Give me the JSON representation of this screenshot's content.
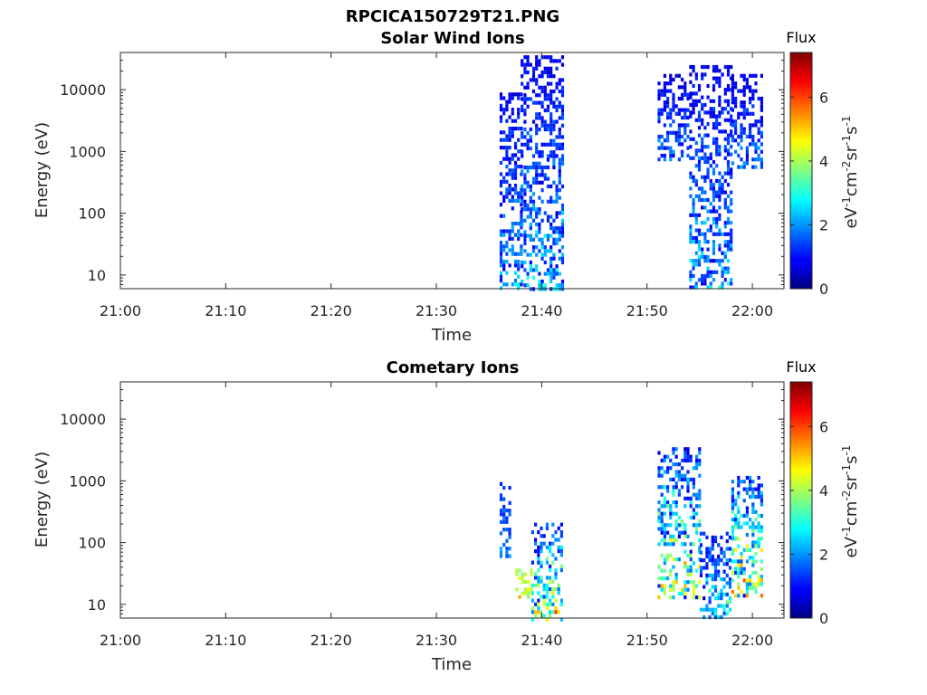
{
  "figure_title": "RPCICA150729T21.PNG",
  "chart_data": [
    {
      "type": "heatmap",
      "title": "Solar Wind Ions",
      "xlabel": "Time",
      "ylabel": "Energy (eV)",
      "x_ticks": [
        "21:00",
        "21:10",
        "21:20",
        "21:30",
        "21:40",
        "21:50",
        "22:00"
      ],
      "xlim": [
        "21:00",
        "22:03"
      ],
      "y_scale": "log",
      "y_ticks": [
        10,
        100,
        1000,
        10000
      ],
      "y_tick_labels": [
        "10",
        "100",
        "1000",
        "10000"
      ],
      "ylim": [
        6,
        40000
      ],
      "colorbar": {
        "label": "eV-1cm-2sr-1s-1",
        "title": "Flux",
        "range": [
          0,
          7.4
        ],
        "ticks": [
          0,
          2,
          4,
          6
        ],
        "colormap": "jet"
      },
      "regions": [
        {
          "t_start": "21:36",
          "t_end": "21:38",
          "e_min": 6,
          "e_max": 9000,
          "flux_min": 0.5,
          "flux_max": 3.2
        },
        {
          "t_start": "21:38",
          "t_end": "21:42",
          "e_min": 6,
          "e_max": 36000,
          "flux_min": 0.5,
          "flux_max": 3.4
        },
        {
          "t_start": "21:51",
          "t_end": "21:54",
          "e_min": 700,
          "e_max": 18000,
          "flux_min": 0.5,
          "flux_max": 2.6
        },
        {
          "t_start": "21:54",
          "t_end": "21:58",
          "e_min": 6,
          "e_max": 25000,
          "flux_min": 0.5,
          "flux_max": 3.3
        },
        {
          "t_start": "21:58",
          "t_end": "22:01",
          "e_min": 600,
          "e_max": 18000,
          "flux_min": 0.5,
          "flux_max": 2.6
        }
      ]
    },
    {
      "type": "heatmap",
      "title": "Cometary Ions",
      "xlabel": "Time",
      "ylabel": "Energy (eV)",
      "x_ticks": [
        "21:00",
        "21:10",
        "21:20",
        "21:30",
        "21:40",
        "21:50",
        "22:00"
      ],
      "xlim": [
        "21:00",
        "22:03"
      ],
      "y_scale": "log",
      "y_ticks": [
        10,
        100,
        1000,
        10000
      ],
      "y_tick_labels": [
        "10",
        "100",
        "1000",
        "10000"
      ],
      "ylim": [
        6,
        40000
      ],
      "colorbar": {
        "label": "eV-1cm-2sr-1s-1",
        "title": "Flux",
        "range": [
          0,
          7.4
        ],
        "ticks": [
          0,
          2,
          4,
          6
        ],
        "colormap": "jet"
      },
      "regions": [
        {
          "t_start": "21:36",
          "t_end": "21:37",
          "e_min": 60,
          "e_max": 1100,
          "flux_min": 1.0,
          "flux_max": 2.5
        },
        {
          "t_start": "21:37.5",
          "t_end": "21:39",
          "e_min": 13,
          "e_max": 38,
          "flux_min": 3.5,
          "flux_max": 5.8
        },
        {
          "t_start": "21:39",
          "t_end": "21:42",
          "e_min": 6,
          "e_max": 210,
          "flux_min": 0.5,
          "flux_max": 6.8
        },
        {
          "t_start": "21:51",
          "t_end": "21:55",
          "e_min": 13,
          "e_max": 3500,
          "flux_min": 0.5,
          "flux_max": 6.6
        },
        {
          "t_start": "21:55",
          "t_end": "21:58",
          "e_min": 6,
          "e_max": 150,
          "flux_min": 0.5,
          "flux_max": 4.5
        },
        {
          "t_start": "21:58",
          "t_end": "22:01",
          "e_min": 13,
          "e_max": 1200,
          "flux_min": 0.5,
          "flux_max": 7.2
        }
      ]
    }
  ]
}
